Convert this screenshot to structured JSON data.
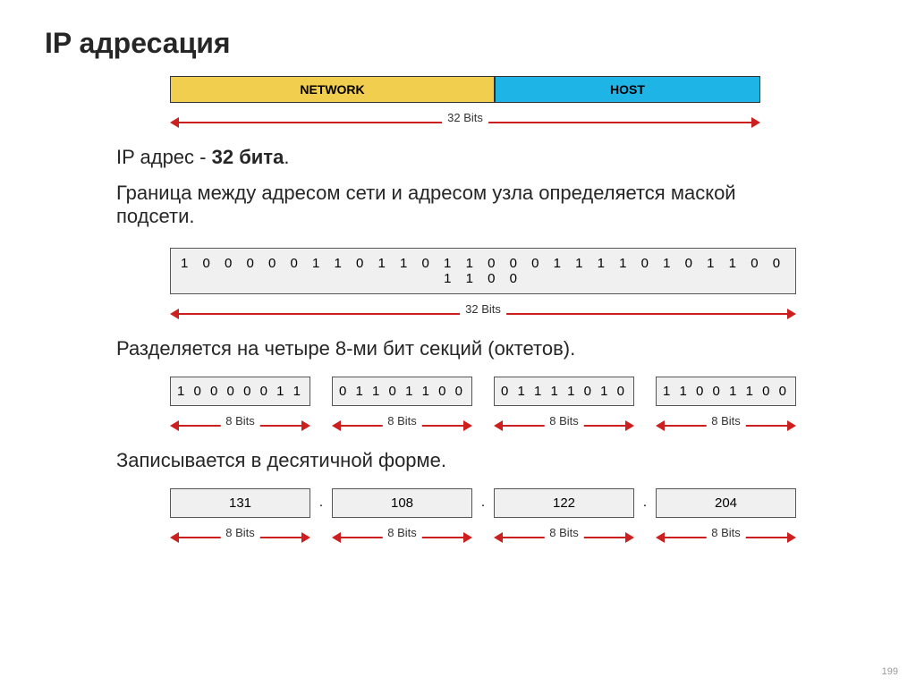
{
  "title": "IP адресация",
  "colors": {
    "network_bg": "#f2ce4e",
    "host_bg": "#1eb4e6",
    "arrow": "#cc1f1f",
    "bit_bg": "#f0f0f0",
    "border": "#555555",
    "text": "#262626"
  },
  "bar1": {
    "network_label": "NETWORK",
    "host_label": "HOST",
    "network_width_pct": 55,
    "host_width_pct": 45,
    "arrow_label": "32 Bits"
  },
  "line1a": "IP адрес -  ",
  "line1b": "32 бита",
  "line1c": ".",
  "line2": "Граница между адресом сети и адресом узла определяется маской подсети.",
  "bits32": "1 0 0 0 0 0 1 1 0 1 1 0 1 1 0 0 0 1 1 1 1 0 1 0 1 1 0 0 1 1 0 0",
  "bits32_arrow_label": "32 Bits",
  "line3": "Разделяется на четыре 8-ми бит секций (октетов).",
  "octets_bin": [
    "1 0 0 0 0 0 1 1",
    "0 1 1 0 1 1 0 0",
    "0 1 1 1 1 0 1 0",
    "1 1 0 0 1 1 0 0"
  ],
  "octet_arrow_label": "8 Bits",
  "line4": "Записывается в десятичной форме.",
  "octets_dec": [
    "131",
    "108",
    "122",
    "204"
  ],
  "dot": ".",
  "page_number": "199"
}
